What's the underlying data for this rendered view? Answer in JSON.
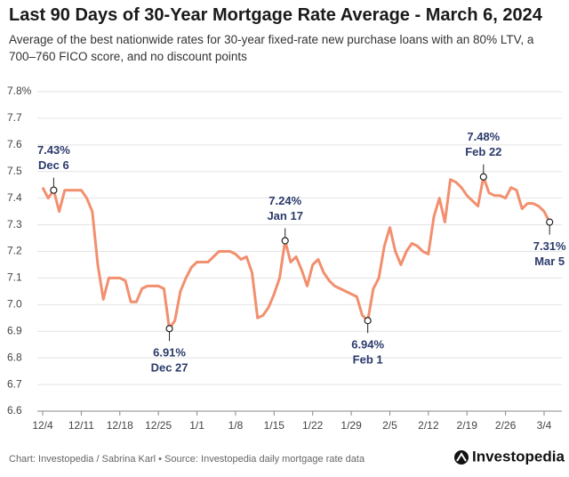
{
  "chart_data": {
    "type": "line",
    "title": "Last 90 Days of 30-Year Mortgage Rate Average - March 6, 2024",
    "subtitle": "Average of the best nationwide rates for 30-year fixed-rate new purchase loans with an 80% LTV, a 700–760 FICO score, and no discount points",
    "source": "Chart: Investopedia / Sabrina Karl • Source: Investopedia daily mortgage rate data",
    "brand": "Investopedia",
    "categories": [
      "12/4",
      null,
      null,
      null,
      null,
      null,
      null,
      "12/11",
      null,
      null,
      null,
      null,
      null,
      null,
      "12/18",
      null,
      null,
      null,
      null,
      null,
      null,
      "12/25",
      null,
      null,
      null,
      null,
      null,
      null,
      "1/1",
      null,
      null,
      null,
      null,
      null,
      null,
      "1/8",
      null,
      null,
      null,
      null,
      null,
      null,
      "1/15",
      null,
      null,
      null,
      null,
      null,
      null,
      "1/22",
      null,
      null,
      null,
      null,
      null,
      null,
      "1/29",
      null,
      null,
      null,
      null,
      null,
      null,
      "2/5",
      null,
      null,
      null,
      null,
      null,
      null,
      "2/12",
      null,
      null,
      null,
      null,
      null,
      null,
      "2/19",
      null,
      null,
      null,
      null,
      null,
      null,
      "2/26",
      null,
      null,
      null,
      null,
      null,
      null,
      "3/4",
      null
    ],
    "series": [
      {
        "name": "30-Year Mortgage Rate Average",
        "color": "#f28f6e",
        "values": [
          7.44,
          7.4,
          7.43,
          7.35,
          7.43,
          7.43,
          7.43,
          7.43,
          7.4,
          7.35,
          7.15,
          7.02,
          7.1,
          7.1,
          7.1,
          7.09,
          7.01,
          7.01,
          7.06,
          7.07,
          7.07,
          7.07,
          7.06,
          6.91,
          6.94,
          7.05,
          7.1,
          7.14,
          7.16,
          7.16,
          7.16,
          7.18,
          7.2,
          7.2,
          7.2,
          7.19,
          7.17,
          7.18,
          7.12,
          6.95,
          6.96,
          6.99,
          7.04,
          7.1,
          7.24,
          7.16,
          7.18,
          7.13,
          7.07,
          7.15,
          7.17,
          7.12,
          7.09,
          7.07,
          7.06,
          7.05,
          7.04,
          7.03,
          6.96,
          6.94,
          7.06,
          7.1,
          7.22,
          7.29,
          7.2,
          7.15,
          7.2,
          7.23,
          7.22,
          7.2,
          7.19,
          7.33,
          7.4,
          7.31,
          7.47,
          7.46,
          7.44,
          7.41,
          7.39,
          7.37,
          7.48,
          7.42,
          7.41,
          7.41,
          7.4,
          7.44,
          7.43,
          7.36,
          7.38,
          7.38,
          7.37,
          7.35,
          7.31
        ],
        "value_labels": [
          null,
          null,
          "7.43%",
          null,
          null,
          null,
          null,
          null,
          null,
          null,
          null,
          null,
          null,
          null,
          null,
          null,
          null,
          null,
          null,
          null,
          null,
          null,
          null,
          "6.91%",
          null,
          null,
          null,
          null,
          null,
          null,
          null,
          null,
          null,
          null,
          null,
          null,
          null,
          null,
          null,
          null,
          null,
          null,
          null,
          null,
          "7.24%",
          null,
          null,
          null,
          null,
          null,
          null,
          null,
          null,
          null,
          null,
          null,
          null,
          null,
          null,
          "6.94%",
          null,
          null,
          null,
          null,
          null,
          null,
          null,
          null,
          null,
          null,
          null,
          null,
          null,
          null,
          null,
          null,
          null,
          null,
          null,
          null,
          "7.48%",
          null,
          null,
          null,
          null,
          null,
          null,
          null,
          null,
          null,
          null,
          null,
          "7.31%"
        ],
        "date_labels": [
          null,
          null,
          "Dec 6",
          null,
          null,
          null,
          null,
          null,
          null,
          null,
          null,
          null,
          null,
          null,
          null,
          null,
          null,
          null,
          null,
          null,
          null,
          null,
          null,
          "Dec 27",
          null,
          null,
          null,
          null,
          null,
          null,
          null,
          null,
          null,
          null,
          null,
          null,
          null,
          null,
          null,
          null,
          null,
          null,
          null,
          null,
          "Jan 17",
          null,
          null,
          null,
          null,
          null,
          null,
          null,
          null,
          null,
          null,
          null,
          null,
          null,
          null,
          "Feb 1",
          null,
          null,
          null,
          null,
          null,
          null,
          null,
          null,
          null,
          null,
          null,
          null,
          null,
          null,
          null,
          null,
          null,
          null,
          null,
          null,
          "Feb 22",
          null,
          null,
          null,
          null,
          null,
          null,
          null,
          null,
          null,
          null,
          null,
          "Mar 5"
        ]
      }
    ],
    "ylim": [
      6.6,
      7.8
    ],
    "yticks": [
      {
        "value": 6.6,
        "label": "6.6"
      },
      {
        "value": 6.7,
        "label": "6.7"
      },
      {
        "value": 6.8,
        "label": "6.8"
      },
      {
        "value": 6.9,
        "label": "6.9"
      },
      {
        "value": 7.0,
        "label": "7.0"
      },
      {
        "value": 7.1,
        "label": "7.1"
      },
      {
        "value": 7.2,
        "label": "7.2"
      },
      {
        "value": 7.3,
        "label": "7.3"
      },
      {
        "value": 7.4,
        "label": "7.4"
      },
      {
        "value": 7.5,
        "label": "7.5"
      },
      {
        "value": 7.6,
        "label": "7.6"
      },
      {
        "value": 7.7,
        "label": "7.7"
      },
      {
        "value": 7.8,
        "label": "7.8%"
      }
    ],
    "grid": true
  }
}
